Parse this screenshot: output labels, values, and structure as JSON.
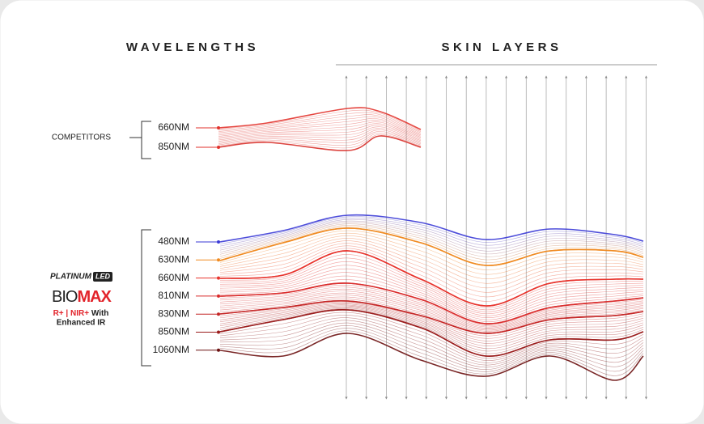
{
  "header": {
    "left": "WAVELENGTHS",
    "right": "SKIN LAYERS"
  },
  "competitors": {
    "label": "COMPETITORS",
    "wavelengths": [
      "660NM",
      "850NM"
    ]
  },
  "biomax": {
    "brand": "PLATINUM",
    "brand_badge": "LED",
    "product_prefix": "BIO",
    "product_suffix": "MAX",
    "tagline_red": "R+ | NIR+",
    "tagline_1": "With",
    "tagline_2": "Enhanced IR",
    "wavelengths": [
      "480NM",
      "630NM",
      "660NM",
      "810NM",
      "830NM",
      "850NM",
      "1060NM"
    ]
  }
}
